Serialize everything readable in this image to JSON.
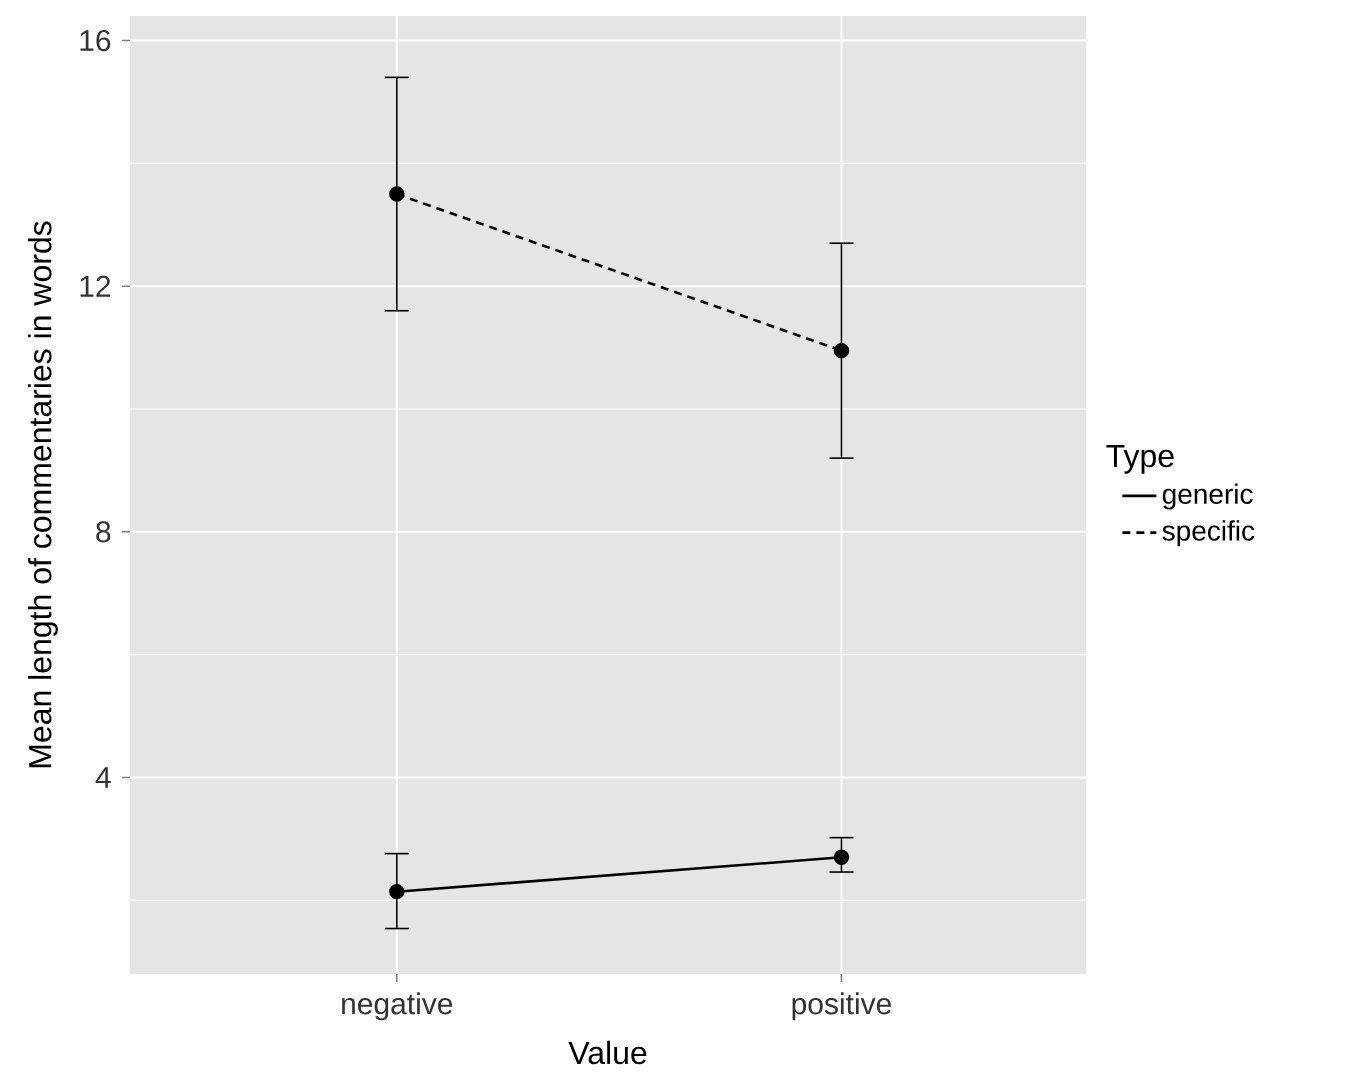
{
  "chart_data": {
    "type": "line",
    "xlabel": "Value",
    "ylabel": "Mean length of commentaries in words",
    "legend_title": "Type",
    "categories": [
      "negative",
      "positive"
    ],
    "series": [
      {
        "name": "generic",
        "color": "#000000",
        "line_style": "solid",
        "values": [
          2.14,
          2.7
        ],
        "errors": [
          [
            1.54,
            2.76
          ],
          [
            2.46,
            3.02
          ]
        ]
      },
      {
        "name": "specific",
        "color": "#000000",
        "line_style": "dashed",
        "values": [
          13.5,
          10.95
        ],
        "errors": [
          [
            11.6,
            15.4
          ],
          [
            9.2,
            12.7
          ]
        ]
      }
    ],
    "ylim": [
      0.8,
      16.4
    ],
    "yticks": [
      4,
      8,
      12,
      16
    ],
    "grid": true,
    "legend": "right",
    "marker": "circle"
  }
}
